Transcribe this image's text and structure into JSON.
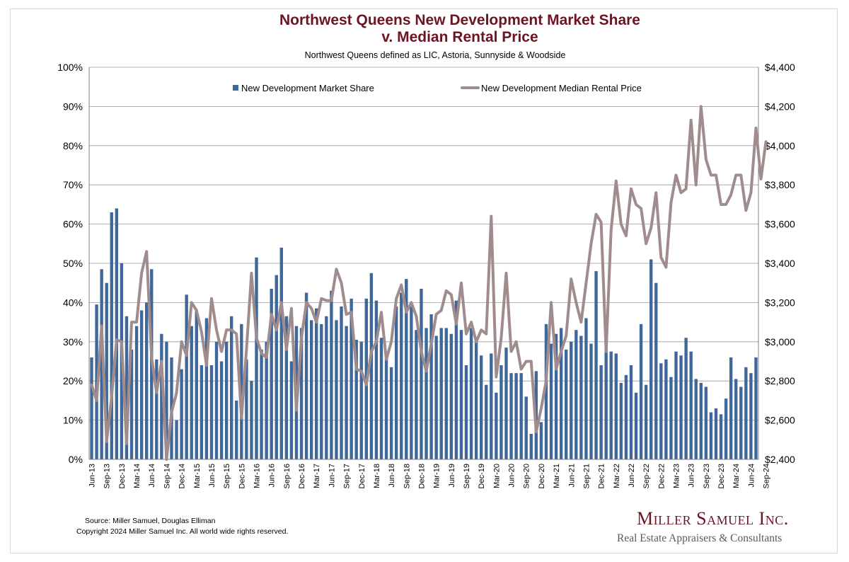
{
  "title": "Northwest Queens New Development Market Share",
  "title_line2": "v. Median Rental Price",
  "subtitle": "Northwest Queens defined as LIC, Astoria, Sunnyside & Woodside",
  "source": "Source: Miller Samuel, Douglas Elliman",
  "copyright": "Copyright 2024 Miller Samuel Inc.  All world wide rights reserved.",
  "logo": {
    "name": "Miller Samuel Inc.",
    "tagline": "Real Estate Appraisers & Consultants"
  },
  "colors": {
    "bar": "#3f679a",
    "line": "#a08c8c",
    "title": "#6b1522",
    "grid": "#9a9a9a"
  },
  "chart_data": {
    "type": "bar",
    "start_month": "Jun-13",
    "x_tick_labels": [
      "Jun-13",
      "Sep-13",
      "Dec-13",
      "Mar-14",
      "Jun-14",
      "Sep-14",
      "Dec-14",
      "Mar-15",
      "Jun-15",
      "Sep-15",
      "Dec-15",
      "Mar-16",
      "Jun-16",
      "Sep-16",
      "Dec-16",
      "Mar-17",
      "Jun-17",
      "Sep-17",
      "Dec-17",
      "Mar-18",
      "Jun-18",
      "Sep-18",
      "Dec-18",
      "Mar-19",
      "Jun-19",
      "Sep-19",
      "Dec-19",
      "Mar-20",
      "Jun-20",
      "Sep-20",
      "Dec-20",
      "Mar-21",
      "Jun-21",
      "Sep-21",
      "Dec-21",
      "Mar-22",
      "Jun-22",
      "Sep-22",
      "Dec-22",
      "Mar-23",
      "Jun-23",
      "Sep-23",
      "Dec-23",
      "Mar-24",
      "Jun-24",
      "Sep-24"
    ],
    "legend": [
      "New Development Market Share",
      "New Development Median Rental Price"
    ],
    "legend_position": "top",
    "grid": true,
    "y_left": {
      "ticks": [
        "0%",
        "10%",
        "20%",
        "30%",
        "40%",
        "50%",
        "60%",
        "70%",
        "80%",
        "90%",
        "100%"
      ],
      "range": [
        0,
        100
      ]
    },
    "y_right": {
      "ticks": [
        "$2,400",
        "$2,600",
        "$2,800",
        "$3,000",
        "$3,200",
        "$3,400",
        "$3,600",
        "$3,800",
        "$4,000",
        "$4,200",
        "$4,400"
      ],
      "range": [
        2400,
        4400
      ]
    },
    "series": [
      {
        "name": "New Development Market Share",
        "type": "bar",
        "axis": "left",
        "values": [
          26,
          39.5,
          48.5,
          45,
          63,
          64,
          50,
          36.5,
          28,
          34,
          38,
          40,
          48.5,
          25.5,
          32,
          30,
          26,
          10,
          23,
          42,
          34,
          38,
          24,
          36,
          24,
          30,
          25,
          30,
          36.5,
          15,
          34.5,
          25.5,
          20,
          51.5,
          28,
          30,
          43.5,
          47,
          54,
          36.5,
          25,
          34,
          33.5,
          42.5,
          35.5,
          38.5,
          34.5,
          36.5,
          43,
          35.5,
          39,
          34,
          41,
          30.5,
          30,
          41,
          47.5,
          40.5,
          31,
          27.5,
          23.5,
          39,
          42.5,
          46,
          39,
          33,
          43.5,
          33.5,
          37,
          31.5,
          33.5,
          33.5,
          32,
          40.5,
          33,
          24,
          33.5,
          30,
          26.5,
          19,
          27,
          17,
          24,
          28.5,
          22,
          22,
          22,
          16,
          6.5,
          22.5,
          9.5,
          34.5,
          29.5,
          32,
          33.5,
          28,
          30,
          33,
          31.5,
          36,
          29.5,
          48,
          24,
          29,
          27.5,
          27,
          19.5,
          21.5,
          24,
          17,
          34.5,
          19,
          51,
          45,
          24.5,
          25.5,
          21,
          27.5,
          26.5,
          31,
          27.5,
          20.5,
          19.5,
          18.5,
          12,
          13,
          11.5,
          15.5,
          26,
          20.5,
          18.5,
          23.5,
          22,
          26
        ]
      },
      {
        "name": "New Development Median Rental Price",
        "type": "line",
        "axis": "right",
        "values": [
          2780,
          2700,
          3080,
          2490,
          2720,
          3010,
          3000,
          2480,
          3100,
          3100,
          3350,
          3460,
          2920,
          2740,
          2900,
          2400,
          2640,
          2740,
          3000,
          2930,
          3200,
          3160,
          3050,
          2880,
          3220,
          3060,
          2950,
          3060,
          3060,
          3040,
          2610,
          2960,
          3350,
          3020,
          2940,
          2920,
          3140,
          3060,
          3200,
          2960,
          3170,
          2650,
          3020,
          3200,
          3170,
          3100,
          3220,
          3210,
          3210,
          3370,
          3300,
          3140,
          3150,
          2860,
          2850,
          2780,
          2950,
          3000,
          3150,
          2910,
          3000,
          3220,
          3290,
          3150,
          3200,
          3130,
          2950,
          2850,
          2990,
          3140,
          3160,
          3260,
          3240,
          3090,
          3300,
          3040,
          3100,
          3000,
          3060,
          3040,
          3640,
          2820,
          3020,
          3350,
          2950,
          3000,
          2860,
          2900,
          2900,
          2540,
          2660,
          2800,
          3200,
          2860,
          2950,
          3030,
          3320,
          3200,
          3100,
          3300,
          3500,
          3650,
          3610,
          2950,
          3570,
          3820,
          3600,
          3540,
          3780,
          3700,
          3680,
          3500,
          3580,
          3760,
          3430,
          3380,
          3710,
          3850,
          3760,
          3780,
          4130,
          3800,
          4200,
          3930,
          3850,
          3850,
          3700,
          3700,
          3750,
          3850,
          3850,
          3670,
          3760,
          4090,
          3830,
          4020
        ]
      }
    ]
  }
}
